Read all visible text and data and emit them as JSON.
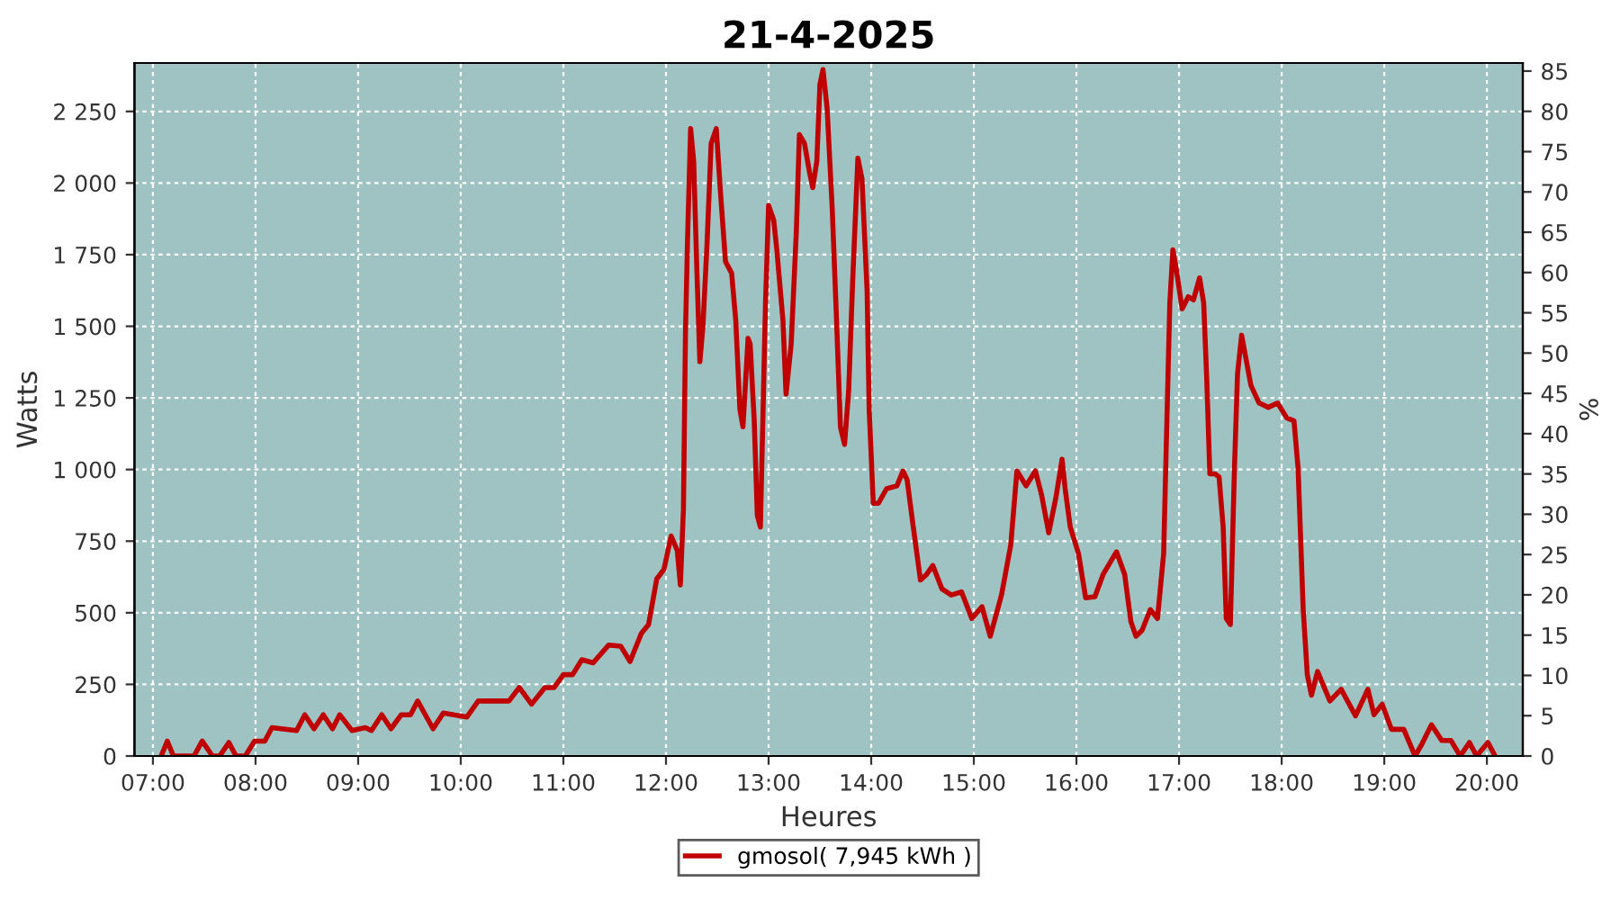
{
  "chart_data": {
    "type": "line",
    "title": "21-4-2025",
    "xlabel": "Heures",
    "ylabel": "Watts",
    "y2label": "%",
    "xlim": [
      6.82,
      20.35
    ],
    "xticks": [
      {
        "value": 7,
        "label": "07:00"
      },
      {
        "value": 8,
        "label": "08:00"
      },
      {
        "value": 9,
        "label": "09:00"
      },
      {
        "value": 10,
        "label": "10:00"
      },
      {
        "value": 11,
        "label": "11:00"
      },
      {
        "value": 12,
        "label": "12:00"
      },
      {
        "value": 13,
        "label": "13:00"
      },
      {
        "value": 14,
        "label": "14:00"
      },
      {
        "value": 15,
        "label": "15:00"
      },
      {
        "value": 16,
        "label": "16:00"
      },
      {
        "value": 17,
        "label": "17:00"
      },
      {
        "value": 18,
        "label": "18:00"
      },
      {
        "value": 19,
        "label": "19:00"
      },
      {
        "value": 20,
        "label": "20:00"
      }
    ],
    "ylim": [
      0,
      2419
    ],
    "yticks": [
      0,
      250,
      500,
      750,
      {
        "value": 1000,
        "label": "1 000"
      },
      {
        "value": 1250,
        "label": "1 250"
      },
      {
        "value": 1500,
        "label": "1 500"
      },
      {
        "value": 1750,
        "label": "1 750"
      },
      {
        "value": 2000,
        "label": "2 000"
      },
      {
        "value": 2250,
        "label": "2 250"
      }
    ],
    "y2lim": [
      0,
      86
    ],
    "y2ticks": [
      0,
      5,
      10,
      15,
      20,
      25,
      30,
      35,
      40,
      45,
      50,
      55,
      60,
      65,
      70,
      75,
      80,
      85
    ],
    "grid": true,
    "legend": "bottom",
    "marker": "none",
    "line_style": "solid",
    "series": [
      {
        "name": "gmosol( 7,945 kWh )",
        "color": "#c00000",
        "x": [
          7.08,
          7.14,
          7.2,
          7.4,
          7.48,
          7.58,
          7.65,
          7.74,
          7.81,
          7.9,
          7.99,
          8.09,
          8.16,
          8.4,
          8.48,
          8.57,
          8.66,
          8.75,
          8.82,
          8.94,
          9.07,
          9.13,
          9.23,
          9.32,
          9.42,
          9.51,
          9.58,
          9.73,
          9.83,
          10.06,
          10.17,
          10.47,
          10.57,
          10.69,
          10.82,
          10.91,
          11.0,
          11.09,
          11.18,
          11.29,
          11.44,
          11.56,
          11.65,
          11.76,
          11.83,
          11.91,
          11.98,
          12.05,
          12.11,
          12.14,
          12.17,
          12.19,
          12.21,
          12.24,
          12.27,
          12.3,
          12.33,
          12.36,
          12.4,
          12.44,
          12.49,
          12.53,
          12.58,
          12.64,
          12.68,
          12.72,
          12.75,
          12.8,
          12.82,
          12.86,
          12.89,
          12.92,
          12.97,
          13.0,
          13.05,
          13.08,
          13.14,
          13.17,
          13.22,
          13.27,
          13.3,
          13.35,
          13.4,
          13.43,
          13.47,
          13.5,
          13.53,
          13.57,
          13.62,
          13.66,
          13.7,
          13.74,
          13.78,
          13.82,
          13.87,
          13.91,
          13.96,
          13.98,
          14.02,
          14.07,
          14.15,
          14.25,
          14.31,
          14.35,
          14.41,
          14.48,
          14.54,
          14.6,
          14.69,
          14.78,
          14.88,
          14.98,
          15.08,
          15.16,
          15.27,
          15.36,
          15.42,
          15.51,
          15.6,
          15.66,
          15.73,
          15.8,
          15.86,
          15.89,
          15.94,
          16.02,
          16.09,
          16.18,
          16.26,
          16.39,
          16.47,
          16.53,
          16.58,
          16.64,
          16.72,
          16.79,
          16.85,
          16.88,
          16.91,
          16.94,
          16.97,
          17.03,
          17.09,
          17.14,
          17.2,
          17.24,
          17.27,
          17.3,
          17.35,
          17.39,
          17.43,
          17.46,
          17.5,
          17.54,
          17.57,
          17.61,
          17.7,
          17.78,
          17.87,
          17.96,
          18.05,
          18.12,
          18.16,
          18.21,
          18.25,
          18.29,
          18.35,
          18.47,
          18.58,
          18.72,
          18.84,
          18.9,
          18.98,
          19.07,
          19.19,
          19.3,
          19.36,
          19.46,
          19.56,
          19.65,
          19.74,
          19.83,
          19.9,
          20.01,
          20.08
        ],
        "values": [
          0,
          52,
          0,
          0,
          52,
          0,
          0,
          47,
          0,
          0,
          52,
          52,
          99,
          89,
          144,
          95,
          144,
          95,
          144,
          89,
          99,
          89,
          144,
          95,
          144,
          144,
          192,
          95,
          150,
          136,
          192,
          192,
          239,
          181,
          239,
          239,
          284,
          284,
          336,
          325,
          387,
          383,
          330,
          428,
          459,
          618,
          651,
          768,
          717,
          597,
          861,
          1479,
          1803,
          2190,
          2076,
          1706,
          1376,
          1500,
          1788,
          2138,
          2190,
          1973,
          1726,
          1685,
          1520,
          1211,
          1149,
          1458,
          1438,
          1170,
          840,
          799,
          1582,
          1922,
          1870,
          1767,
          1520,
          1263,
          1438,
          1829,
          2169,
          2138,
          2035,
          1984,
          2076,
          2344,
          2396,
          2262,
          1912,
          1541,
          1149,
          1088,
          1273,
          1664,
          2087,
          2015,
          1623,
          1211,
          882,
          882,
          933,
          943,
          995,
          964,
          799,
          614,
          634,
          665,
          583,
          562,
          573,
          480,
          521,
          418,
          562,
          737,
          995,
          943,
          995,
          912,
          779,
          902,
          1036,
          933,
          799,
          707,
          552,
          556,
          634,
          713,
          634,
          470,
          418,
          439,
          511,
          480,
          707,
          1149,
          1582,
          1767,
          1706,
          1561,
          1603,
          1592,
          1669,
          1582,
          1314,
          985,
          985,
          974,
          799,
          480,
          459,
          1005,
          1335,
          1469,
          1294,
          1232,
          1217,
          1232,
          1180,
          1170,
          1005,
          511,
          284,
          212,
          295,
          192,
          233,
          140,
          233,
          144,
          181,
          93,
          93,
          0,
          37,
          109,
          54,
          54,
          0,
          47,
          0,
          47,
          0
        ]
      }
    ]
  }
}
